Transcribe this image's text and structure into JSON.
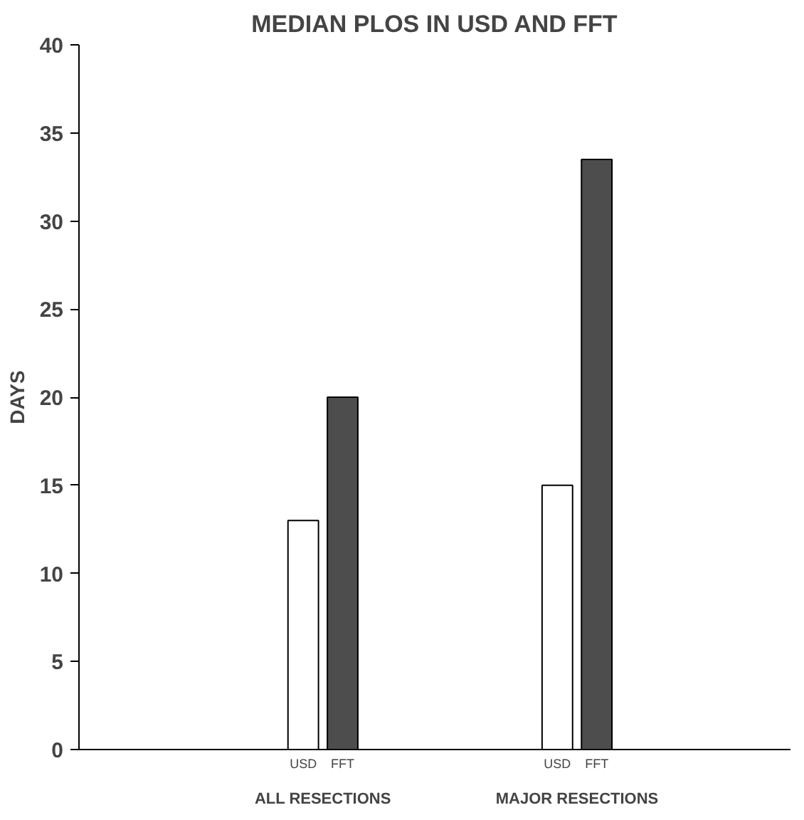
{
  "chart_data": {
    "type": "bar",
    "title": "MEDIAN PLOS IN USD AND FFT",
    "ylabel": "DAYS",
    "categories": [
      "ALL RESECTIONS",
      "MAJOR RESECTIONS"
    ],
    "series": [
      {
        "name": "USD",
        "color": "#ffffff",
        "values": [
          13,
          15
        ]
      },
      {
        "name": "FFT",
        "color": "#4d4d4d",
        "values": [
          20,
          33.5
        ]
      }
    ],
    "ylim": [
      0,
      40
    ],
    "yticks": [
      0,
      5,
      10,
      15,
      20,
      25,
      30,
      35,
      40
    ],
    "grid": false,
    "legend": false
  }
}
